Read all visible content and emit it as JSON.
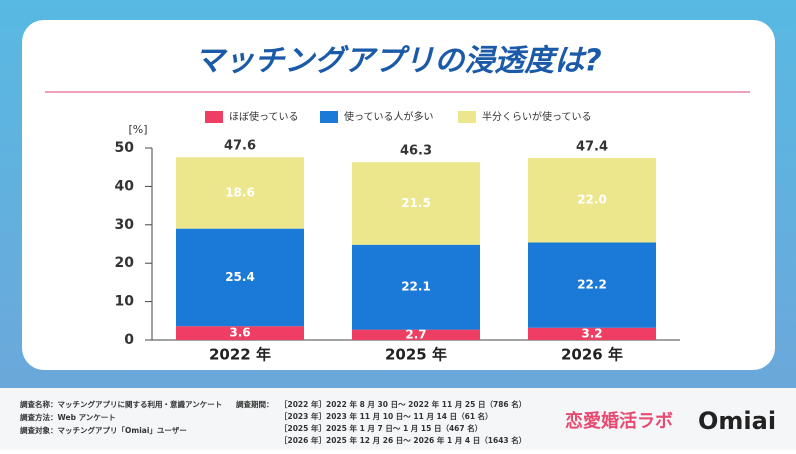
{
  "chart_data": {
    "type": "stacked_bar",
    "title": "マッチングアプリの浸透度は?",
    "y_unit": "[%]",
    "categories": [
      "2022 年",
      "2025 年",
      "2026 年"
    ],
    "series": [
      {
        "name": "ほぼ使っている",
        "color": "#ee3e63",
        "values": [
          3.6,
          2.7,
          3.2
        ]
      },
      {
        "name": "使っている人が多い",
        "color": "#1b79d8",
        "values": [
          25.4,
          22.1,
          22.2
        ]
      },
      {
        "name": "半分くらいが使っている",
        "color": "#ece68c",
        "values": [
          18.6,
          21.5,
          22.0
        ],
        "value_labels": [
          "18.6",
          "21.5",
          "22.0"
        ]
      }
    ],
    "totals": [
      47.6,
      46.3,
      47.4
    ],
    "ylim": [
      0,
      50
    ],
    "yticks": [
      0,
      10,
      20,
      30,
      40,
      50
    ]
  },
  "footer": {
    "survey_left": [
      "調査名称：マッチングアプリに関する利用・意識アンケート",
      "調査方法：Web アンケート",
      "調査対象：マッチングアプリ「Omiai」ユーザー"
    ],
    "period_label": "調査期間：",
    "periods": [
      "［2022 年］2022 年 8 月 30 日～ 2022 年 11 月 25 日（786 名）",
      "［2023 年］2023 年 11 月 10 日～ 11 月 14 日（61 名）",
      "［2025 年］2025 年 1 月 7 日～ 1 月 15 日（467 名）",
      "［2026 年］2025 年 12 月 26 日～ 2026 年 1 月 4 日（1643 名）"
    ],
    "logo_lab": "恋愛婚活ラボ",
    "logo_omiai": "Omiai"
  }
}
